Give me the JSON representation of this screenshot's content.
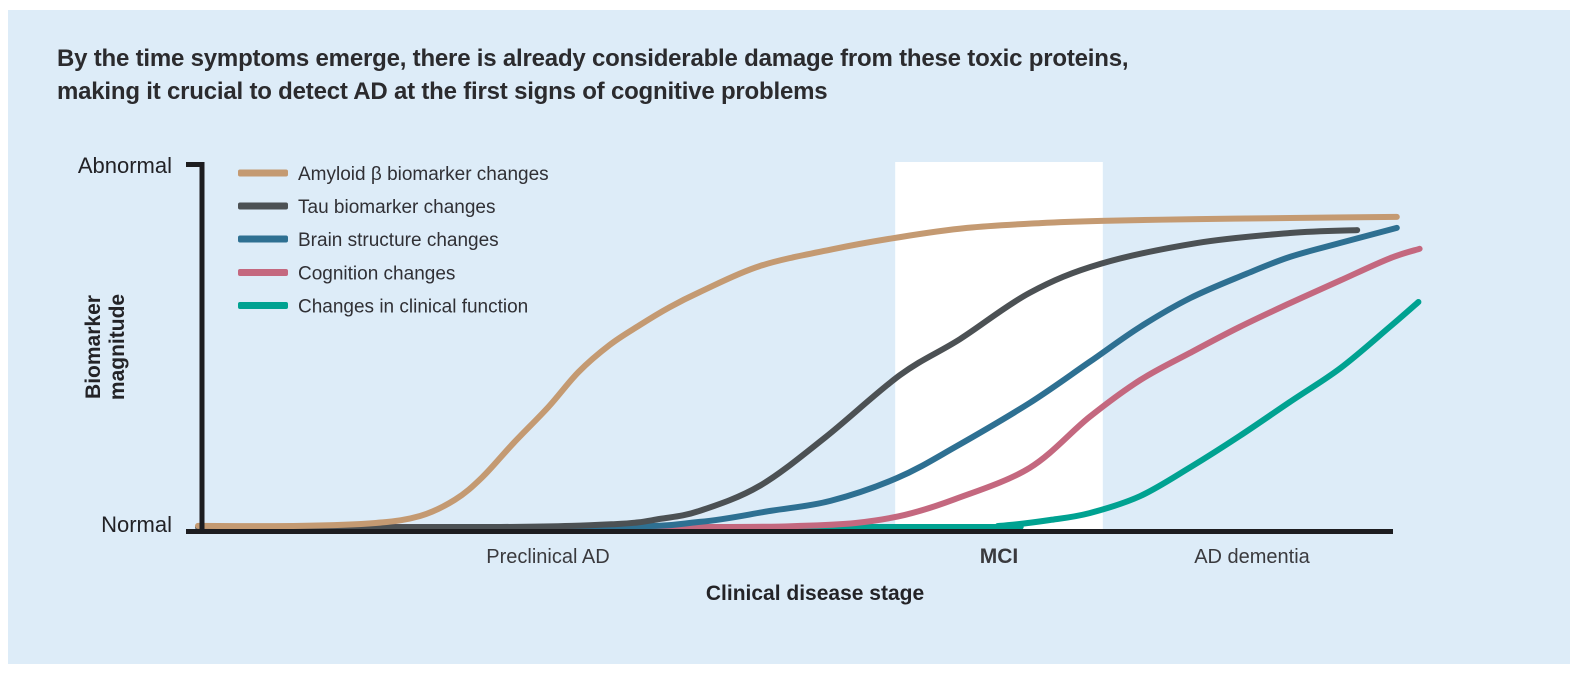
{
  "title": {
    "line1": "By the time symptoms emerge, there is already considerable damage from these toxic proteins,",
    "line2": "making it crucial to detect AD at the first signs of cognitive problems"
  },
  "colors": {
    "page_frame": "#ffffff",
    "panel_background": "#ddecf8",
    "axis": "#1d1d20",
    "title_text": "#2b2b2e",
    "mci_band": "#ffffff",
    "mci_label": "#c49a73"
  },
  "y_axis": {
    "top_label": "Abnormal",
    "bottom_label": "Normal",
    "title_line1": "Biomarker",
    "title_line2": "magnitude"
  },
  "x_axis": {
    "title": "Clinical disease stage",
    "stages": [
      {
        "label": "Preclinical AD",
        "color": "#3a3a3e"
      },
      {
        "label": "MCI",
        "color": "#c49a73"
      },
      {
        "label": "AD dementia",
        "color": "#3a3a3e"
      }
    ]
  },
  "chart_data": {
    "type": "line",
    "title": "By the time symptoms emerge, there is already considerable damage from these toxic proteins, making it crucial to detect AD at the first signs of cognitive problems",
    "xlabel": "Clinical disease stage",
    "ylabel": "Biomarker magnitude",
    "x_unit": "qualitative disease progression 0-102 (Preclinical AD → MCI → AD dementia)",
    "ylim": [
      0,
      1
    ],
    "y_meaning": "0 = Normal, 1 = Abnormal",
    "grid": false,
    "legend_position": "top-left",
    "mci_band": {
      "label": "MCI",
      "x_start": 58.1,
      "x_end": 75.4,
      "color": "#ffffff"
    },
    "series": [
      {
        "id": "amyloid",
        "name": "Amyloid β biomarker changes",
        "color": "#c49a72",
        "points": [
          [
            0,
            0.003
          ],
          [
            8.5,
            0.003
          ],
          [
            14.8,
            0.011
          ],
          [
            18.5,
            0.03
          ],
          [
            21.4,
            0.074
          ],
          [
            23.7,
            0.136
          ],
          [
            26.3,
            0.229
          ],
          [
            29.2,
            0.327
          ],
          [
            31.7,
            0.422
          ],
          [
            34.3,
            0.496
          ],
          [
            36.8,
            0.55
          ],
          [
            39.3,
            0.599
          ],
          [
            41.8,
            0.64
          ],
          [
            46.8,
            0.711
          ],
          [
            52.9,
            0.757
          ],
          [
            58.5,
            0.79
          ],
          [
            64.1,
            0.815
          ],
          [
            70.2,
            0.828
          ],
          [
            75.3,
            0.834
          ],
          [
            83.3,
            0.839
          ],
          [
            91,
            0.842
          ],
          [
            99.9,
            0.845
          ]
        ]
      },
      {
        "id": "tau",
        "name": "Tau biomarker changes",
        "color": "#4c5154",
        "points": [
          [
            0,
            0
          ],
          [
            25.2,
            0
          ],
          [
            34.8,
            0.008
          ],
          [
            38.5,
            0.022
          ],
          [
            41.8,
            0.044
          ],
          [
            46.8,
            0.112
          ],
          [
            52.3,
            0.245
          ],
          [
            58.5,
            0.414
          ],
          [
            63.5,
            0.512
          ],
          [
            69.3,
            0.638
          ],
          [
            75.2,
            0.717
          ],
          [
            83.3,
            0.774
          ],
          [
            91,
            0.801
          ],
          [
            96.6,
            0.809
          ]
        ]
      },
      {
        "id": "brain-structure",
        "name": "Brain structure changes",
        "color": "#2e7092",
        "points": [
          [
            0,
            0
          ],
          [
            33.5,
            0
          ],
          [
            41.8,
            0.014
          ],
          [
            47.7,
            0.044
          ],
          [
            52.7,
            0.071
          ],
          [
            58.3,
            0.134
          ],
          [
            63.1,
            0.218
          ],
          [
            69.3,
            0.338
          ],
          [
            74.3,
            0.45
          ],
          [
            78.5,
            0.545
          ],
          [
            82.7,
            0.624
          ],
          [
            87.3,
            0.689
          ],
          [
            91,
            0.736
          ],
          [
            95.2,
            0.774
          ],
          [
            99.9,
            0.815
          ]
        ]
      },
      {
        "id": "cognition",
        "name": "Cognition changes",
        "color": "#c4687f",
        "points": [
          [
            0,
            0
          ],
          [
            41.8,
            0
          ],
          [
            50.2,
            0.003
          ],
          [
            54.8,
            0.011
          ],
          [
            58.9,
            0.033
          ],
          [
            63.1,
            0.076
          ],
          [
            69.3,
            0.161
          ],
          [
            74.3,
            0.3
          ],
          [
            78.5,
            0.4
          ],
          [
            82.7,
            0.475
          ],
          [
            86.8,
            0.545
          ],
          [
            91,
            0.61
          ],
          [
            95.2,
            0.672
          ],
          [
            99.3,
            0.732
          ],
          [
            101.8,
            0.758
          ]
        ]
      },
      {
        "id": "clinical-function",
        "name": "Changes in clinical function",
        "color": "#00a291",
        "points": [
          [
            0,
            0
          ],
          [
            62.7,
            0
          ],
          [
            66.8,
            0.003
          ],
          [
            71,
            0.019
          ],
          [
            74.3,
            0.038
          ],
          [
            78.5,
            0.084
          ],
          [
            82.7,
            0.163
          ],
          [
            86.8,
            0.248
          ],
          [
            91,
            0.341
          ],
          [
            95.2,
            0.433
          ],
          [
            99.3,
            0.545
          ],
          [
            101.7,
            0.613
          ]
        ]
      }
    ]
  }
}
